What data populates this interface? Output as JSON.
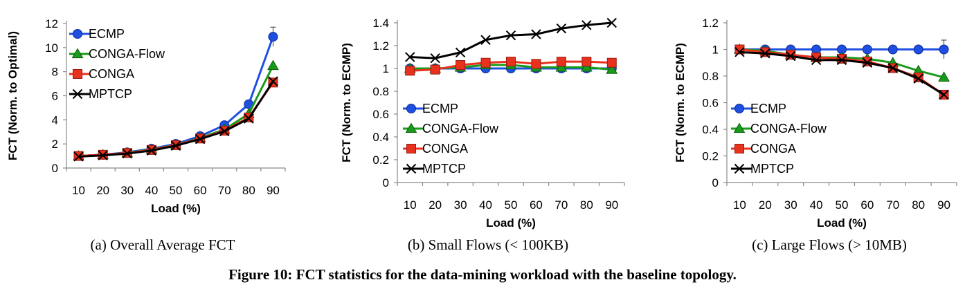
{
  "figure_caption": "Figure 10: FCT statistics for the data-mining workload with the baseline topology.",
  "colors": {
    "ECMP": "#1f4fe0",
    "CONGA-Flow": "#1a9a1a",
    "CONGA": "#e8321e",
    "MPTCP": "#000000"
  },
  "chart_data": [
    {
      "type": "line",
      "caption": "(a) Overall Average FCT",
      "xlabel": "Load (%)",
      "ylabel": "FCT (Norm. to Optimal)",
      "x": [
        10,
        20,
        30,
        40,
        50,
        60,
        70,
        80,
        90
      ],
      "ylim": [
        0,
        12
      ],
      "yticks": [
        0,
        2,
        4,
        6,
        8,
        10,
        12
      ],
      "legend_position": "top-left",
      "series": [
        {
          "name": "ECMP",
          "marker": "circle",
          "values": [
            1.0,
            1.1,
            1.3,
            1.6,
            2.0,
            2.65,
            3.55,
            5.3,
            10.9
          ],
          "error_last": 0.8
        },
        {
          "name": "CONGA-Flow",
          "marker": "triangle",
          "values": [
            1.0,
            1.1,
            1.25,
            1.55,
            1.9,
            2.5,
            3.2,
            4.5,
            8.5
          ]
        },
        {
          "name": "CONGA",
          "marker": "square",
          "values": [
            1.0,
            1.1,
            1.25,
            1.5,
            1.9,
            2.45,
            3.1,
            4.2,
            7.1
          ]
        },
        {
          "name": "MPTCP",
          "marker": "x",
          "values": [
            0.95,
            1.05,
            1.2,
            1.45,
            1.85,
            2.4,
            3.05,
            4.1,
            7.2
          ]
        }
      ]
    },
    {
      "type": "line",
      "caption": "(b) Small Flows (< 100KB)",
      "xlabel": "Load (%)",
      "ylabel": "FCT (Norm. to ECMP)",
      "x": [
        10,
        20,
        30,
        40,
        50,
        60,
        70,
        80,
        90
      ],
      "ylim": [
        0,
        1.4
      ],
      "yticks": [
        "0",
        "0.2",
        "0.4",
        "0.6",
        "0.8",
        "1",
        "1.2",
        "1.4"
      ],
      "legend_position": "bottom-left",
      "series": [
        {
          "name": "ECMP",
          "marker": "circle",
          "values": [
            1,
            1,
            1,
            1,
            1,
            1,
            1,
            1,
            1
          ]
        },
        {
          "name": "CONGA-Flow",
          "marker": "triangle",
          "values": [
            1.0,
            1.0,
            1.01,
            1.03,
            1.03,
            1.01,
            1.01,
            1.01,
            0.99
          ]
        },
        {
          "name": "CONGA",
          "marker": "square",
          "values": [
            0.98,
            0.99,
            1.03,
            1.05,
            1.06,
            1.04,
            1.06,
            1.06,
            1.05
          ]
        },
        {
          "name": "MPTCP",
          "marker": "x",
          "values": [
            1.1,
            1.09,
            1.14,
            1.25,
            1.29,
            1.3,
            1.35,
            1.38,
            1.4
          ]
        }
      ]
    },
    {
      "type": "line",
      "caption": "(c) Large Flows (> 10MB)",
      "xlabel": "Load (%)",
      "ylabel": "FCT (Norm. to ECMP)",
      "x": [
        10,
        20,
        30,
        40,
        50,
        60,
        70,
        80,
        90
      ],
      "ylim": [
        0,
        1.2
      ],
      "yticks": [
        "0",
        "0.2",
        "0.4",
        "0.6",
        "0.8",
        "1",
        "1.2"
      ],
      "legend_position": "bottom-left",
      "series": [
        {
          "name": "ECMP",
          "marker": "circle",
          "values": [
            1,
            1,
            1,
            1,
            1,
            1,
            1,
            1,
            1
          ],
          "error_last": 0.07
        },
        {
          "name": "CONGA-Flow",
          "marker": "triangle",
          "values": [
            1.0,
            0.99,
            0.96,
            0.94,
            0.94,
            0.93,
            0.9,
            0.84,
            0.79
          ]
        },
        {
          "name": "CONGA",
          "marker": "square",
          "values": [
            1.0,
            0.98,
            0.96,
            0.94,
            0.93,
            0.91,
            0.86,
            0.79,
            0.66
          ]
        },
        {
          "name": "MPTCP",
          "marker": "x",
          "values": [
            0.98,
            0.97,
            0.95,
            0.92,
            0.92,
            0.9,
            0.86,
            0.78,
            0.66
          ]
        }
      ]
    }
  ]
}
